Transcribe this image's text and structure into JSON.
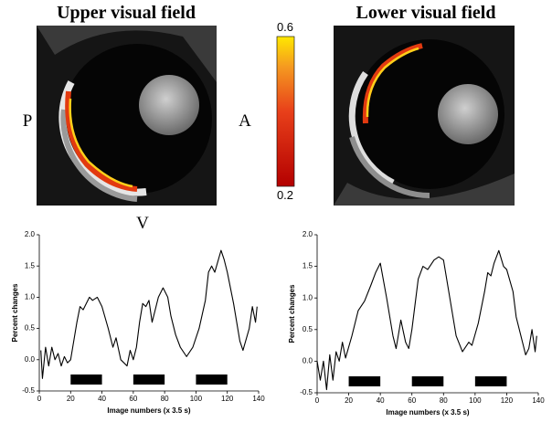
{
  "figure": {
    "panels": [
      {
        "title": "Upper visual field"
      },
      {
        "title": "Lower visual field"
      }
    ],
    "orientation": {
      "posterior": "P",
      "anterior": "A",
      "ventral": "V"
    },
    "colorbar": {
      "max": "0.6",
      "min": "0.2"
    }
  },
  "chart_data": [
    {
      "type": "line",
      "color": "#000000",
      "y_label": "Percent changes",
      "x_label": "Image numbers (x 3.5 s)",
      "xlim": [
        0,
        140
      ],
      "xticks": [
        0,
        20,
        40,
        60,
        80,
        100,
        120,
        140
      ],
      "ylim": [
        -0.5,
        2.0
      ],
      "yticks": [
        -0.5,
        {
          "value": 0,
          "label": "0.0"
        },
        0.5,
        {
          "value": 1,
          "label": "1.0"
        },
        1.5,
        {
          "value": 2,
          "label": "2.0"
        }
      ],
      "x": [
        1,
        2,
        4,
        6,
        8,
        10,
        12,
        14,
        16,
        18,
        20,
        22,
        24,
        26,
        28,
        30,
        32,
        34,
        37,
        40,
        44,
        47,
        49,
        52,
        56,
        58,
        60,
        62,
        64,
        66,
        68,
        70,
        72,
        74,
        76,
        79,
        82,
        84,
        87,
        90,
        94,
        98,
        102,
        106,
        108,
        110,
        112,
        116,
        118,
        120,
        124,
        128,
        130,
        134,
        136,
        138,
        139
      ],
      "values": [
        0.15,
        -0.3,
        0.2,
        -0.1,
        0.2,
        0.0,
        0.1,
        -0.1,
        0.05,
        -0.05,
        0.0,
        0.3,
        0.6,
        0.85,
        0.8,
        0.9,
        1.0,
        0.95,
        1.0,
        0.85,
        0.5,
        0.2,
        0.35,
        0.0,
        -0.1,
        0.15,
        0.0,
        0.2,
        0.6,
        0.9,
        0.85,
        0.95,
        0.6,
        0.8,
        1.0,
        1.15,
        1.0,
        0.7,
        0.4,
        0.2,
        0.05,
        0.2,
        0.5,
        0.95,
        1.4,
        1.5,
        1.4,
        1.75,
        1.6,
        1.4,
        0.9,
        0.3,
        0.15,
        0.5,
        0.85,
        0.6,
        0.85
      ],
      "blocks": [
        {
          "start": 20,
          "end": 40
        },
        {
          "start": 60,
          "end": 80
        },
        {
          "start": 100,
          "end": 120
        }
      ]
    },
    {
      "type": "line",
      "color": "#000000",
      "y_label": "Percent changes",
      "x_label": "Image numbers (x 3.5 s)",
      "xlim": [
        0,
        140
      ],
      "xticks": [
        0,
        20,
        40,
        60,
        80,
        100,
        120,
        140
      ],
      "ylim": [
        -0.5,
        2.0
      ],
      "yticks": [
        -0.5,
        {
          "value": 0,
          "label": "0.0"
        },
        0.5,
        {
          "value": 1,
          "label": "1.0"
        },
        1.5,
        {
          "value": 2,
          "label": "2.0"
        }
      ],
      "x": [
        0,
        2,
        4,
        6,
        8,
        10,
        12,
        14,
        16,
        18,
        22,
        26,
        30,
        34,
        37,
        40,
        44,
        48,
        50,
        53,
        56,
        58,
        60,
        62,
        64,
        67,
        70,
        74,
        77,
        80,
        84,
        88,
        92,
        96,
        98,
        102,
        106,
        108,
        110,
        112,
        115,
        118,
        120,
        124,
        126,
        130,
        132,
        134,
        136,
        138,
        139
      ],
      "values": [
        0.0,
        -0.3,
        0.0,
        -0.45,
        0.1,
        -0.3,
        0.15,
        0.0,
        0.3,
        0.05,
        0.4,
        0.8,
        0.95,
        1.2,
        1.4,
        1.55,
        1.0,
        0.4,
        0.2,
        0.65,
        0.3,
        0.2,
        0.5,
        0.9,
        1.3,
        1.5,
        1.45,
        1.6,
        1.65,
        1.6,
        1.0,
        0.4,
        0.15,
        0.3,
        0.25,
        0.6,
        1.1,
        1.4,
        1.35,
        1.55,
        1.75,
        1.5,
        1.45,
        1.1,
        0.7,
        0.3,
        0.1,
        0.2,
        0.5,
        0.15,
        0.4
      ],
      "blocks": [
        {
          "start": 20,
          "end": 40
        },
        {
          "start": 60,
          "end": 80
        },
        {
          "start": 100,
          "end": 120
        }
      ]
    }
  ]
}
